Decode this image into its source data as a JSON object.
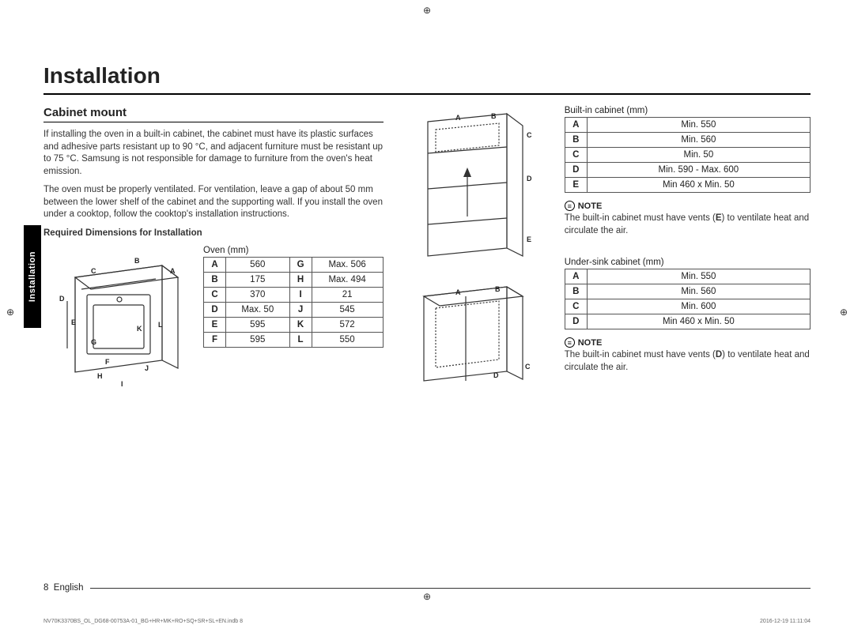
{
  "page": {
    "title": "Installation",
    "side_tab": "Installation",
    "footer_page": "8",
    "footer_lang": "English",
    "print_left": "NV70K3370BS_OL_DG68-00753A-01_BG+HR+MK+RO+SQ+SR+SL+EN.indb   8",
    "print_right": "2016-12-19   11:11:04"
  },
  "section": {
    "heading": "Cabinet mount",
    "para1": "If installing the oven in a built-in cabinet, the cabinet must have its plastic surfaces and adhesive parts resistant up to 90 °C, and adjacent furniture must be resistant up to 75 °C. Samsung is not responsible for damage to furniture from the oven's heat emission.",
    "para2": "The oven must be properly ventilated. For ventilation, leave a gap of about 50 mm between the lower shelf of the cabinet and the supporting wall. If you install the oven under a cooktop, follow the cooktop's installation instructions.",
    "req_heading": "Required Dimensions for Installation"
  },
  "oven": {
    "caption": "Oven (mm)",
    "rows": [
      {
        "a": "A",
        "av": "560",
        "b": "G",
        "bv": "Max. 506"
      },
      {
        "a": "B",
        "av": "175",
        "b": "H",
        "bv": "Max. 494"
      },
      {
        "a": "C",
        "av": "370",
        "b": "I",
        "bv": "21"
      },
      {
        "a": "D",
        "av": "Max. 50",
        "b": "J",
        "bv": "545"
      },
      {
        "a": "E",
        "av": "595",
        "b": "K",
        "bv": "572"
      },
      {
        "a": "F",
        "av": "595",
        "b": "L",
        "bv": "550"
      }
    ],
    "labels": [
      "A",
      "B",
      "C",
      "D",
      "E",
      "F",
      "G",
      "H",
      "I",
      "J",
      "K",
      "L"
    ]
  },
  "builtin": {
    "caption": "Built-in cabinet (mm)",
    "rows": [
      {
        "k": "A",
        "v": "Min. 550"
      },
      {
        "k": "B",
        "v": "Min. 560"
      },
      {
        "k": "C",
        "v": "Min. 50"
      },
      {
        "k": "D",
        "v": "Min. 590 - Max. 600"
      },
      {
        "k": "E",
        "v": "Min 460 x Min. 50"
      }
    ],
    "note_label": "NOTE",
    "note": "The built-in cabinet must have vents (E) to ventilate heat and circulate the air.",
    "labels": [
      "A",
      "B",
      "C",
      "D",
      "E"
    ]
  },
  "undersink": {
    "caption": "Under-sink cabinet (mm)",
    "rows": [
      {
        "k": "A",
        "v": "Min. 550"
      },
      {
        "k": "B",
        "v": "Min. 560"
      },
      {
        "k": "C",
        "v": "Min. 600"
      },
      {
        "k": "D",
        "v": "Min 460 x Min. 50"
      }
    ],
    "note_label": "NOTE",
    "note": "The built-in cabinet must have vents (D) to ventilate heat and circulate the air.",
    "labels": [
      "A",
      "B",
      "C",
      "D"
    ]
  },
  "style": {
    "text_color": "#222",
    "rule_color": "#000",
    "table_border": "#555",
    "body_fontsize": 11.5,
    "title_fontsize": 28
  }
}
